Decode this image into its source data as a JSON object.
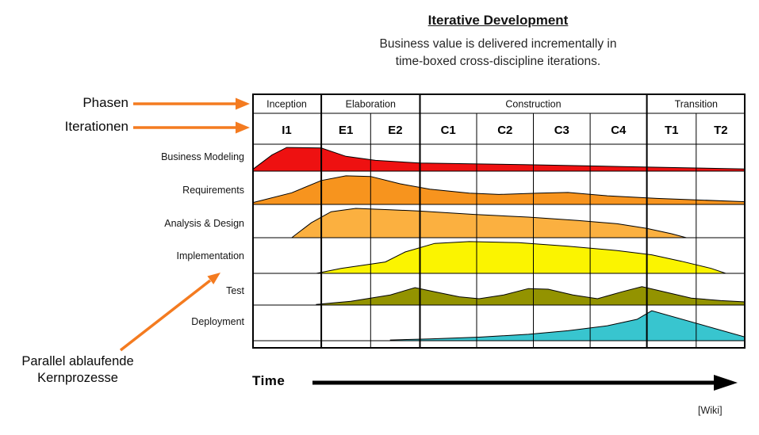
{
  "title": "Iterative Development",
  "subtitle": {
    "line1": "Business value is delivered incrementally in",
    "line2": "time-boxed cross-discipline iterations."
  },
  "annotations": {
    "phasen_label": "Phasen",
    "iterationen_label": "Iterationen",
    "parallel_label_line1": "Parallel ablaufende",
    "parallel_label_line2": "Kernprozesse",
    "time_label": "Time",
    "attribution": "[Wiki]"
  },
  "colors": {
    "annotation_arrow": "#F47B20",
    "time_arrow": "#000000",
    "grid": "#000000"
  },
  "chart_data": {
    "type": "area",
    "title": "Iterative Development",
    "x_axis_label": "Time",
    "legend": "none",
    "col_weights": [
      14,
      10,
      10,
      11.5,
      11.5,
      11.5,
      11.5,
      10,
      10
    ],
    "phases": [
      {
        "label": "Inception",
        "iterations": [
          "I1"
        ]
      },
      {
        "label": "Elaboration",
        "iterations": [
          "E1",
          "E2"
        ]
      },
      {
        "label": "Construction",
        "iterations": [
          "C1",
          "C2",
          "C3",
          "C4"
        ]
      },
      {
        "label": "Transition",
        "iterations": [
          "T1",
          "T2"
        ]
      }
    ],
    "disciplines": [
      {
        "name": "Business Modeling",
        "color": "#EE1111",
        "effort_profile": [
          [
            0,
            0.05
          ],
          [
            4,
            0.6
          ],
          [
            7,
            0.88
          ],
          [
            14,
            0.86
          ],
          [
            19,
            0.55
          ],
          [
            25,
            0.4
          ],
          [
            34,
            0.3
          ],
          [
            55,
            0.24
          ],
          [
            75,
            0.17
          ],
          [
            100,
            0.08
          ]
        ]
      },
      {
        "name": "Requirements",
        "color": "#F7941E",
        "effort_profile": [
          [
            0,
            0.05
          ],
          [
            8,
            0.35
          ],
          [
            14,
            0.72
          ],
          [
            19,
            0.86
          ],
          [
            24,
            0.84
          ],
          [
            30,
            0.62
          ],
          [
            36,
            0.46
          ],
          [
            44,
            0.34
          ],
          [
            50,
            0.3
          ],
          [
            58,
            0.34
          ],
          [
            64,
            0.36
          ],
          [
            72,
            0.26
          ],
          [
            82,
            0.18
          ],
          [
            100,
            0.08
          ]
        ]
      },
      {
        "name": "Analysis & Design",
        "color": "#FBB040",
        "effort_profile": [
          [
            8,
            0
          ],
          [
            12,
            0.45
          ],
          [
            16,
            0.78
          ],
          [
            21,
            0.88
          ],
          [
            28,
            0.84
          ],
          [
            34,
            0.8
          ],
          [
            45,
            0.7
          ],
          [
            56,
            0.62
          ],
          [
            66,
            0.52
          ],
          [
            74,
            0.42
          ],
          [
            80,
            0.28
          ],
          [
            85,
            0.12
          ],
          [
            88,
            0
          ]
        ]
      },
      {
        "name": "Implementation",
        "color": "#FBF400",
        "effort_profile": [
          [
            13,
            0
          ],
          [
            18,
            0.14
          ],
          [
            23,
            0.24
          ],
          [
            27,
            0.32
          ],
          [
            31,
            0.6
          ],
          [
            37,
            0.84
          ],
          [
            44,
            0.89
          ],
          [
            54,
            0.86
          ],
          [
            64,
            0.76
          ],
          [
            74,
            0.64
          ],
          [
            81,
            0.52
          ],
          [
            87,
            0.34
          ],
          [
            93,
            0.14
          ],
          [
            96,
            0
          ]
        ]
      },
      {
        "name": "Test",
        "color": "#939300",
        "effort_profile": [
          [
            13,
            0.02
          ],
          [
            20,
            0.12
          ],
          [
            28,
            0.32
          ],
          [
            33,
            0.55
          ],
          [
            37,
            0.42
          ],
          [
            42,
            0.26
          ],
          [
            46,
            0.2
          ],
          [
            51,
            0.32
          ],
          [
            56,
            0.52
          ],
          [
            60,
            0.5
          ],
          [
            65,
            0.32
          ],
          [
            70,
            0.2
          ],
          [
            75,
            0.42
          ],
          [
            79,
            0.58
          ],
          [
            84,
            0.4
          ],
          [
            89,
            0.22
          ],
          [
            95,
            0.14
          ],
          [
            100,
            0.1
          ]
        ]
      },
      {
        "name": "Deployment",
        "color": "#38C5CF",
        "effort_profile": [
          [
            28,
            0.02
          ],
          [
            36,
            0.05
          ],
          [
            46,
            0.1
          ],
          [
            56,
            0.18
          ],
          [
            64,
            0.28
          ],
          [
            72,
            0.42
          ],
          [
            78,
            0.6
          ],
          [
            81,
            0.84
          ],
          [
            100,
            0.1
          ]
        ]
      }
    ]
  }
}
